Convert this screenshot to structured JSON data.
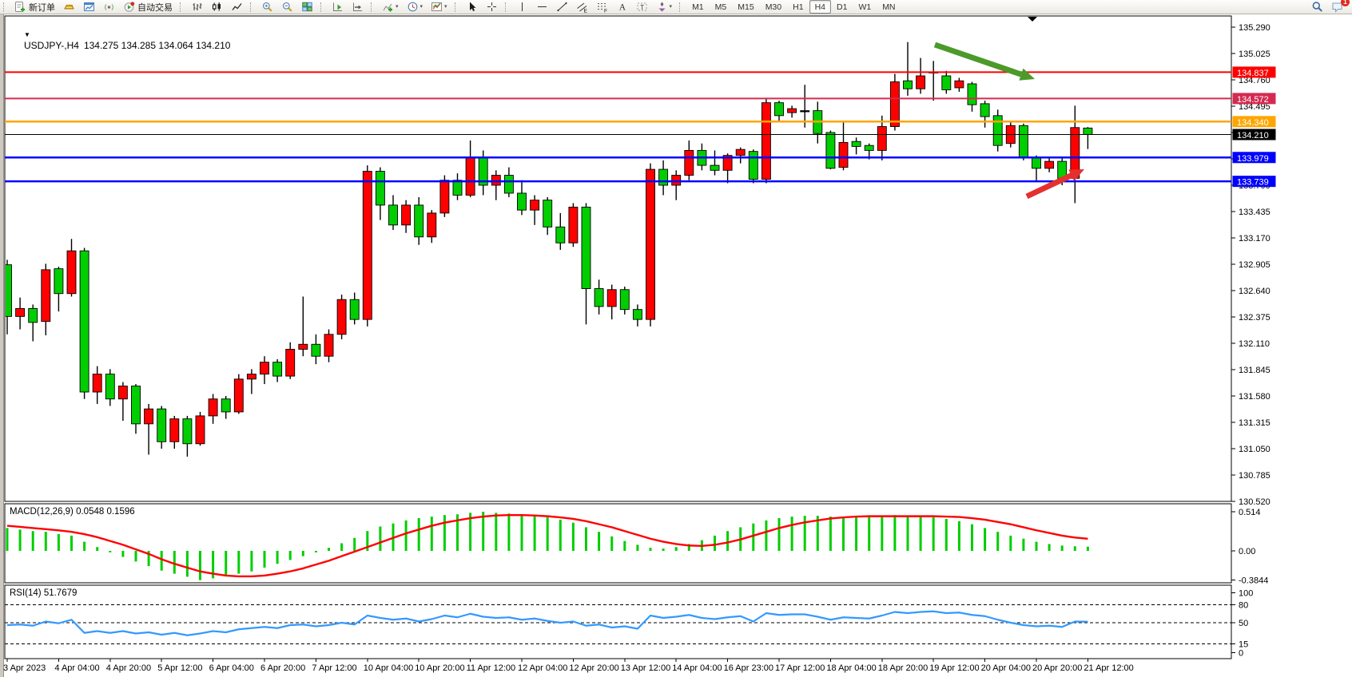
{
  "toolbar": {
    "new_order_label": "新订单",
    "autotrading_label": "自动交易",
    "timeframes": [
      "M1",
      "M5",
      "M15",
      "M30",
      "H1",
      "H4",
      "D1",
      "W1",
      "MN"
    ],
    "active_timeframe": "H4",
    "notification_badge": "1",
    "groups": [
      [
        {
          "name": "new-order-button",
          "icon": "new-order-icon",
          "label_key": "new_order_label"
        },
        {
          "name": "mql5-button",
          "icon": "mql5-icon"
        },
        {
          "name": "market-watch-button",
          "icon": "market-watch-icon"
        },
        {
          "name": "signals-button",
          "icon": "signals-icon"
        },
        {
          "name": "autotrading-button",
          "icon": "autotrading-icon",
          "label_key": "autotrading_label"
        }
      ],
      [
        {
          "name": "chart-bars-button",
          "icon": "bars-icon"
        },
        {
          "name": "chart-candles-button",
          "icon": "candles-icon"
        },
        {
          "name": "chart-line-button",
          "icon": "line-icon"
        }
      ],
      [
        {
          "name": "zoom-in-button",
          "icon": "zoom-in-icon"
        },
        {
          "name": "zoom-out-button",
          "icon": "zoom-out-icon"
        },
        {
          "name": "tile-windows-button",
          "icon": "tile-windows-icon"
        }
      ],
      [
        {
          "name": "chart-shift-button",
          "icon": "chart-shift-icon"
        },
        {
          "name": "auto-scroll-button",
          "icon": "auto-scroll-icon"
        }
      ],
      [
        {
          "name": "indicators-button",
          "icon": "indicators-icon",
          "dropdown": true
        },
        {
          "name": "periods-button",
          "icon": "clock-icon",
          "dropdown": true
        },
        {
          "name": "templates-button",
          "icon": "template-icon",
          "dropdown": true
        }
      ],
      [
        {
          "name": "cursor-button",
          "icon": "cursor-icon"
        },
        {
          "name": "crosshair-button",
          "icon": "crosshair-icon"
        }
      ],
      [
        {
          "name": "vertical-line-button",
          "icon": "vline-icon"
        },
        {
          "name": "horizontal-line-button",
          "icon": "hline-icon"
        },
        {
          "name": "trendline-button",
          "icon": "trendline-icon"
        },
        {
          "name": "channel-button",
          "icon": "channel-icon"
        },
        {
          "name": "fibonacci-button",
          "icon": "fibo-icon"
        },
        {
          "name": "text-button",
          "icon": "text-icon"
        },
        {
          "name": "text-label-button",
          "icon": "label-icon"
        },
        {
          "name": "arrows-button",
          "icon": "arrows-icon",
          "dropdown": true
        }
      ]
    ]
  },
  "chart": {
    "title_symbol": "USDJPY-,H4",
    "title_ohlc": "134.275 134.285 134.064 134.210",
    "macd_label": "MACD(12,26,9) 0.0548 0.1596",
    "rsi_label": "RSI(14) 51.7679"
  },
  "colors": {
    "up": "#FF0000",
    "down": "#00CE00",
    "doji": "#000000",
    "wick": "#000000",
    "macd_bar": "#00CE00",
    "macd_signal": "#FF0000",
    "rsi_line": "#3399FF",
    "line_red": "#FF0000",
    "line_crimson": "#D42A50",
    "line_orange": "#FFA500",
    "line_blue": "#0000FF",
    "line_black": "#000000",
    "arrow_green": "#4C9A2A",
    "arrow_red": "#E53030"
  },
  "chart_data": [
    {
      "type": "candlestick",
      "title": "USDJPY-,H4",
      "ohlc_current": {
        "open": "134.275",
        "high": "134.285",
        "low": "134.064",
        "close": "134.210"
      },
      "ylim": [
        130.52,
        135.29
      ],
      "y_ticks": [
        "135.290",
        "135.025",
        "134.760",
        "134.495",
        "134.230",
        "133.965",
        "133.700",
        "133.435",
        "133.170",
        "132.905",
        "132.640",
        "132.375",
        "132.110",
        "131.845",
        "131.580",
        "131.315",
        "131.050",
        "130.785",
        "130.520"
      ],
      "x_labels": [
        "3 Apr 2023",
        "4 Apr 04:00",
        "4 Apr 20:00",
        "5 Apr 12:00",
        "6 Apr 04:00",
        "6 Apr 20:00",
        "7 Apr 12:00",
        "10 Apr 04:00",
        "10 Apr 20:00",
        "11 Apr 12:00",
        "12 Apr 04:00",
        "12 Apr 20:00",
        "13 Apr 12:00",
        "14 Apr 04:00",
        "16 Apr 23:00",
        "17 Apr 12:00",
        "18 Apr 04:00",
        "18 Apr 20:00",
        "19 Apr 12:00",
        "20 Apr 04:00",
        "20 Apr 20:00",
        "21 Apr 12:00"
      ],
      "x_label_step": 4,
      "grid": false,
      "h_lines": [
        {
          "price": 134.837,
          "label": "134.837",
          "color_key": "line_red",
          "width": 2
        },
        {
          "price": 134.572,
          "label": "134.572",
          "color_key": "line_crimson",
          "width": 2
        },
        {
          "price": 134.34,
          "label": "134.340",
          "color_key": "line_orange",
          "width": 2.5
        },
        {
          "price": 134.21,
          "label": "134.210",
          "color_key": "line_black",
          "width": 1,
          "current": true
        },
        {
          "price": 133.979,
          "label": "133.979",
          "color_key": "line_blue",
          "width": 2.5
        },
        {
          "price": 133.739,
          "label": "133.739",
          "color_key": "line_blue",
          "width": 2.5
        }
      ],
      "arrows": [
        {
          "name": "down-trend-arrow",
          "color_key": "arrow_green",
          "from": [
            1170,
            56
          ],
          "to": [
            1295,
            99
          ]
        },
        {
          "name": "up-trend-arrow",
          "color_key": "arrow_red",
          "from": [
            1285,
            246
          ],
          "to": [
            1357,
            212
          ]
        }
      ],
      "candles": [
        [
          132.9,
          132.95,
          132.2,
          132.38
        ],
        [
          132.38,
          132.57,
          132.25,
          132.46
        ],
        [
          132.46,
          132.5,
          132.13,
          132.32
        ],
        [
          132.33,
          132.91,
          132.19,
          132.85
        ],
        [
          132.86,
          132.88,
          132.43,
          132.61
        ],
        [
          132.61,
          133.16,
          132.58,
          133.04
        ],
        [
          133.04,
          133.07,
          131.55,
          131.62
        ],
        [
          131.62,
          131.88,
          131.5,
          131.8
        ],
        [
          131.8,
          131.85,
          131.48,
          131.55
        ],
        [
          131.55,
          131.72,
          131.33,
          131.68
        ],
        [
          131.68,
          131.7,
          131.2,
          131.3
        ],
        [
          131.3,
          131.5,
          130.99,
          131.45
        ],
        [
          131.45,
          131.48,
          131.05,
          131.12
        ],
        [
          131.12,
          131.38,
          131.05,
          131.35
        ],
        [
          131.35,
          131.38,
          130.97,
          131.1
        ],
        [
          131.1,
          131.42,
          131.08,
          131.38
        ],
        [
          131.38,
          131.6,
          131.3,
          131.55
        ],
        [
          131.55,
          131.58,
          131.35,
          131.42
        ],
        [
          131.42,
          131.8,
          131.4,
          131.75
        ],
        [
          131.75,
          131.85,
          131.6,
          131.8
        ],
        [
          131.8,
          131.98,
          131.7,
          131.92
        ],
        [
          131.92,
          131.95,
          131.72,
          131.78
        ],
        [
          131.78,
          132.12,
          131.75,
          132.05
        ],
        [
          132.05,
          132.58,
          131.98,
          132.1
        ],
        [
          132.1,
          132.2,
          131.9,
          131.98
        ],
        [
          131.98,
          132.25,
          131.92,
          132.2
        ],
        [
          132.2,
          132.6,
          132.15,
          132.55
        ],
        [
          132.55,
          132.62,
          132.3,
          132.35
        ],
        [
          132.35,
          133.9,
          132.28,
          133.84
        ],
        [
          133.84,
          133.88,
          133.35,
          133.5
        ],
        [
          133.5,
          133.6,
          133.25,
          133.3
        ],
        [
          133.3,
          133.55,
          133.22,
          133.5
        ],
        [
          133.5,
          133.58,
          133.1,
          133.18
        ],
        [
          133.18,
          133.45,
          133.12,
          133.42
        ],
        [
          133.42,
          133.8,
          133.38,
          133.75
        ],
        [
          133.75,
          133.82,
          133.55,
          133.6
        ],
        [
          133.6,
          134.15,
          133.58,
          133.98
        ],
        [
          133.98,
          134.05,
          133.6,
          133.7
        ],
        [
          133.7,
          133.85,
          133.55,
          133.8
        ],
        [
          133.8,
          133.88,
          133.58,
          133.62
        ],
        [
          133.62,
          133.75,
          133.4,
          133.45
        ],
        [
          133.45,
          133.6,
          133.3,
          133.55
        ],
        [
          133.55,
          133.58,
          133.2,
          133.28
        ],
        [
          133.28,
          133.42,
          133.05,
          133.12
        ],
        [
          133.12,
          133.52,
          133.08,
          133.48
        ],
        [
          133.48,
          133.52,
          132.3,
          132.66
        ],
        [
          132.66,
          132.75,
          132.4,
          132.48
        ],
        [
          132.48,
          132.7,
          132.35,
          132.65
        ],
        [
          132.65,
          132.68,
          132.4,
          132.45
        ],
        [
          132.45,
          132.5,
          132.28,
          132.35
        ],
        [
          132.35,
          133.92,
          132.28,
          133.86
        ],
        [
          133.86,
          133.95,
          133.6,
          133.7
        ],
        [
          133.7,
          133.85,
          133.55,
          133.8
        ],
        [
          133.8,
          134.15,
          133.75,
          134.05
        ],
        [
          134.05,
          134.12,
          133.85,
          133.9
        ],
        [
          133.9,
          134.05,
          133.8,
          133.85
        ],
        [
          133.85,
          134.02,
          133.72,
          134.0
        ],
        [
          134.0,
          134.08,
          133.92,
          134.06
        ],
        [
          134.04,
          134.06,
          133.72,
          133.76
        ],
        [
          133.76,
          134.58,
          133.72,
          134.53
        ],
        [
          134.53,
          134.55,
          134.35,
          134.4
        ],
        [
          134.43,
          134.5,
          134.38,
          134.47
        ],
        [
          134.45,
          134.71,
          134.28,
          134.45
        ],
        [
          134.45,
          134.54,
          134.12,
          134.22
        ],
        [
          134.23,
          134.25,
          133.86,
          133.87
        ],
        [
          133.88,
          134.33,
          133.85,
          134.13
        ],
        [
          134.14,
          134.18,
          134.01,
          134.09
        ],
        [
          134.1,
          134.12,
          133.96,
          134.05
        ],
        [
          134.05,
          134.4,
          133.95,
          134.29
        ],
        [
          134.29,
          134.82,
          134.25,
          134.74
        ],
        [
          134.75,
          135.14,
          134.6,
          134.67
        ],
        [
          134.67,
          134.98,
          134.62,
          134.8
        ],
        [
          134.84,
          134.95,
          134.55,
          134.83
        ],
        [
          134.8,
          134.85,
          134.62,
          134.66
        ],
        [
          134.68,
          134.78,
          134.64,
          134.75
        ],
        [
          134.72,
          134.74,
          134.44,
          134.51
        ],
        [
          134.52,
          134.55,
          134.28,
          134.39
        ],
        [
          134.4,
          134.46,
          134.04,
          134.1
        ],
        [
          134.12,
          134.35,
          134.08,
          134.3
        ],
        [
          134.3,
          134.32,
          133.95,
          133.98
        ],
        [
          133.98,
          134.0,
          133.74,
          133.87
        ],
        [
          133.87,
          133.97,
          133.83,
          133.94
        ],
        [
          133.94,
          133.97,
          133.7,
          133.77
        ],
        [
          133.77,
          134.5,
          133.52,
          134.28
        ],
        [
          134.275,
          134.285,
          134.064,
          134.21
        ]
      ]
    },
    {
      "type": "bar",
      "name": "MACD(12,26,9)",
      "current_values": "0.0548 0.1596",
      "ylim": [
        -0.3844,
        0.514
      ],
      "scale_labels": [
        "0.514",
        "0.00",
        "-0.3844"
      ],
      "scale_values": [
        0.514,
        0,
        -0.3844
      ],
      "values": [
        0.3,
        0.28,
        0.26,
        0.25,
        0.22,
        0.2,
        0.12,
        0.05,
        -0.02,
        -0.08,
        -0.14,
        -0.2,
        -0.26,
        -0.3,
        -0.34,
        -0.3844,
        -0.36,
        -0.33,
        -0.3,
        -0.27,
        -0.22,
        -0.17,
        -0.12,
        -0.07,
        -0.02,
        0.04,
        0.1,
        0.17,
        0.26,
        0.32,
        0.36,
        0.4,
        0.43,
        0.45,
        0.47,
        0.48,
        0.5,
        0.514,
        0.5,
        0.49,
        0.47,
        0.46,
        0.44,
        0.41,
        0.37,
        0.31,
        0.25,
        0.19,
        0.13,
        0.08,
        0.04,
        0.03,
        0.05,
        0.09,
        0.14,
        0.2,
        0.26,
        0.31,
        0.36,
        0.4,
        0.43,
        0.45,
        0.46,
        0.46,
        0.45,
        0.44,
        0.44,
        0.45,
        0.46,
        0.47,
        0.46,
        0.45,
        0.44,
        0.42,
        0.39,
        0.35,
        0.3,
        0.25,
        0.2,
        0.16,
        0.12,
        0.09,
        0.07,
        0.06,
        0.0548
      ],
      "signal": [
        0.33,
        0.315,
        0.3,
        0.285,
        0.27,
        0.25,
        0.22,
        0.18,
        0.13,
        0.08,
        0.02,
        -0.04,
        -0.11,
        -0.17,
        -0.22,
        -0.27,
        -0.3,
        -0.325,
        -0.335,
        -0.335,
        -0.325,
        -0.3,
        -0.27,
        -0.23,
        -0.18,
        -0.13,
        -0.07,
        -0.01,
        0.05,
        0.11,
        0.17,
        0.23,
        0.28,
        0.33,
        0.37,
        0.4,
        0.43,
        0.45,
        0.465,
        0.47,
        0.47,
        0.465,
        0.455,
        0.44,
        0.42,
        0.39,
        0.35,
        0.31,
        0.26,
        0.21,
        0.16,
        0.12,
        0.09,
        0.07,
        0.065,
        0.08,
        0.11,
        0.15,
        0.2,
        0.25,
        0.3,
        0.34,
        0.375,
        0.4,
        0.425,
        0.44,
        0.45,
        0.455,
        0.455,
        0.455,
        0.455,
        0.455,
        0.455,
        0.45,
        0.445,
        0.43,
        0.41,
        0.38,
        0.35,
        0.31,
        0.27,
        0.235,
        0.2,
        0.175,
        0.1596
      ]
    },
    {
      "type": "line",
      "name": "RSI(14)",
      "current_value": "51.7679",
      "ylim": [
        0,
        100
      ],
      "scale_labels": [
        "100",
        "80",
        "50",
        "15",
        "0"
      ],
      "scale_values": [
        100,
        80,
        50,
        15,
        0
      ],
      "levels": [
        80,
        50,
        15
      ],
      "values": [
        46,
        47,
        45,
        52,
        49,
        55,
        33,
        36,
        33,
        36,
        32,
        34,
        30,
        33,
        29,
        32,
        36,
        34,
        39,
        41,
        43,
        41,
        46,
        47,
        44,
        46,
        50,
        47,
        62,
        58,
        55,
        57,
        52,
        56,
        62,
        59,
        65,
        60,
        58,
        59,
        55,
        57,
        53,
        50,
        52,
        45,
        47,
        42,
        44,
        40,
        62,
        58,
        60,
        63,
        58,
        56,
        59,
        61,
        52,
        66,
        63,
        64,
        64,
        60,
        55,
        59,
        58,
        57,
        62,
        68,
        66,
        68,
        69,
        66,
        67,
        63,
        61,
        55,
        50,
        46,
        44,
        45,
        43,
        52,
        51.7679
      ]
    }
  ]
}
